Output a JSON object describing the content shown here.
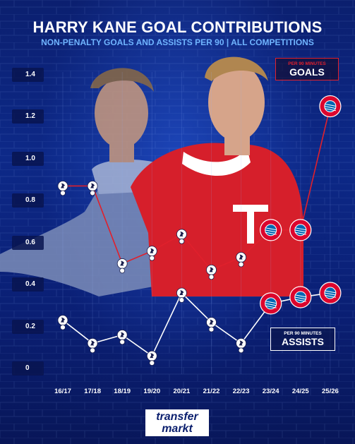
{
  "title": "HARRY KANE GOAL CONTRIBUTIONS",
  "subtitle": "NON-PENALTY GOALS AND ASSISTS PER 90 | ALL COMPETITIONS",
  "legend_goals": {
    "small": "PER 90 MINUTES",
    "big": "GOALS"
  },
  "legend_assists": {
    "small": "PER 90 MINUTES",
    "big": "ASSISTS"
  },
  "brand": {
    "line1": "transfer",
    "line2": "markt"
  },
  "colors": {
    "goals": "#e0202c",
    "assists": "#ffffff",
    "background": "#0b1f6e",
    "subtitle": "#6fb4ff"
  },
  "club_icons": {
    "tottenham": "cockerel-icon",
    "bayern": "bayern-badge-icon"
  },
  "chart_data": {
    "type": "line",
    "title": "HARRY KANE GOAL CONTRIBUTIONS",
    "subtitle": "NON-PENALTY GOALS AND ASSISTS PER 90 | ALL COMPETITIONS",
    "xlabel": "",
    "ylabel": "",
    "categories": [
      "16/17",
      "17/18",
      "18/19",
      "19/20",
      "20/21",
      "21/22",
      "22/23",
      "23/24",
      "24/25",
      "25/26"
    ],
    "y_ticks": [
      "1.4",
      "1.2",
      "1.0",
      "0.8",
      "0.6",
      "0.4",
      "0.2",
      "0"
    ],
    "ylim": [
      0,
      1.4
    ],
    "grid": false,
    "series": [
      {
        "name": "GOALS",
        "values": [
          0.87,
          0.87,
          0.5,
          0.56,
          0.64,
          0.47,
          0.53,
          0.66,
          0.66,
          1.25
        ],
        "club": [
          "tottenham",
          "tottenham",
          "tottenham",
          "tottenham",
          "tottenham",
          "tottenham",
          "tottenham",
          "bayern",
          "bayern",
          "bayern"
        ]
      },
      {
        "name": "ASSISTS",
        "values": [
          0.23,
          0.12,
          0.16,
          0.06,
          0.36,
          0.22,
          0.12,
          0.31,
          0.34,
          0.36
        ],
        "club": [
          "tottenham",
          "tottenham",
          "tottenham",
          "tottenham",
          "tottenham",
          "tottenham",
          "tottenham",
          "bayern",
          "bayern",
          "bayern"
        ]
      }
    ]
  }
}
